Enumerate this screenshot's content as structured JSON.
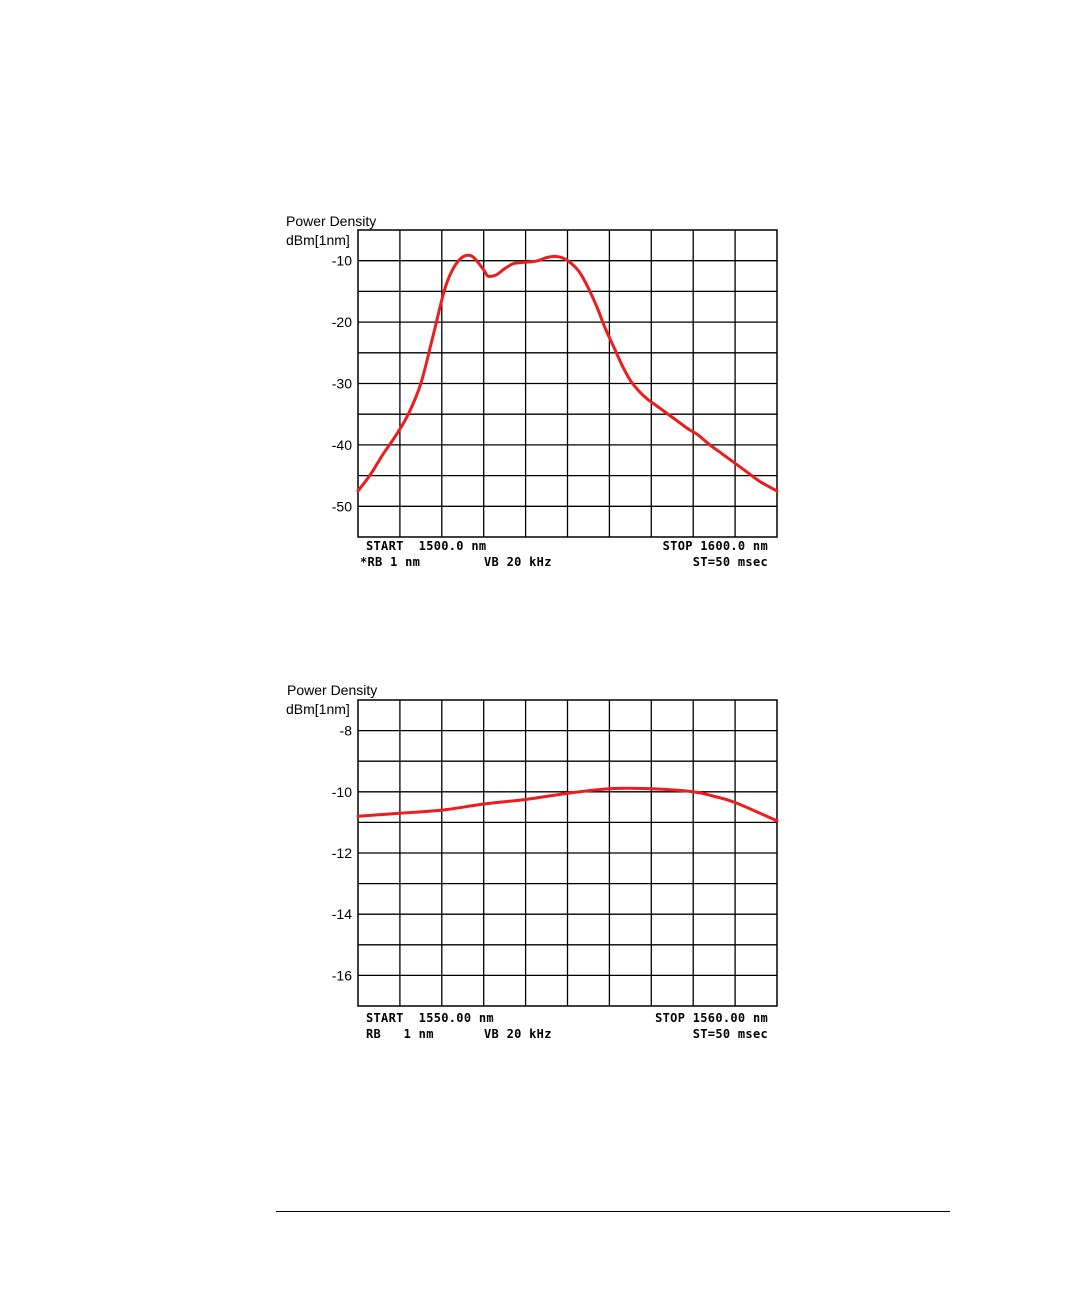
{
  "chart_data": [
    {
      "type": "line",
      "ylabel_line1": "Power Density",
      "ylabel_line2": "dBm[1nm]",
      "xlim": [
        1500,
        1600
      ],
      "ylim": [
        -55,
        -5
      ],
      "ytick_values": [
        -10,
        -20,
        -30,
        -40,
        -50
      ],
      "ytick_labels": [
        "-10",
        "-20",
        "-30",
        "-40",
        "-50"
      ],
      "footer": {
        "start": "START  1500.0 nm",
        "stop": "STOP 1600.0 nm",
        "rb": "*RB 1 nm",
        "vb": "VB 20 kHz",
        "st": "ST=50 msec"
      },
      "line_color": "#ee1c1c",
      "series": [
        {
          "x": [
            1500,
            1503,
            1506,
            1509,
            1512,
            1515,
            1518,
            1521,
            1524,
            1527,
            1530,
            1531,
            1533,
            1535,
            1537,
            1539,
            1541,
            1543,
            1545,
            1547,
            1549,
            1551,
            1553,
            1555,
            1557,
            1559,
            1561,
            1563,
            1565,
            1567,
            1569,
            1571,
            1573,
            1575,
            1577,
            1579,
            1581,
            1584,
            1587,
            1590,
            1593,
            1596,
            1600
          ],
          "y": [
            -47.5,
            -44.8,
            -41.5,
            -38.5,
            -35,
            -30,
            -22,
            -14,
            -10,
            -9.2,
            -11.5,
            -12.5,
            -12.3,
            -11.3,
            -10.5,
            -10.3,
            -10.2,
            -10,
            -9.5,
            -9.3,
            -9.6,
            -10.5,
            -12,
            -14.5,
            -17.5,
            -21,
            -24,
            -27,
            -29.5,
            -31.2,
            -32.5,
            -33.5,
            -34.5,
            -35.5,
            -36.5,
            -37.5,
            -38.3,
            -40,
            -41.5,
            -43,
            -44.5,
            -46,
            -47.5
          ]
        }
      ]
    },
    {
      "type": "line",
      "ylabel_line1": "Power Density",
      "ylabel_line2": "dBm[1nm]",
      "xlim": [
        1550,
        1560
      ],
      "ylim": [
        -17,
        -7
      ],
      "ytick_values": [
        -8,
        -10,
        -12,
        -14,
        -16
      ],
      "ytick_labels": [
        "-8",
        "-10",
        "-12",
        "-14",
        "-16"
      ],
      "footer": {
        "start": "START  1550.00 nm",
        "stop": "STOP 1560.00 nm",
        "rb": "RB   1 nm",
        "vb": "VB 20 kHz",
        "st": "ST=50 msec"
      },
      "line_color": "#ee1c1c",
      "series": [
        {
          "x": [
            1550,
            1551,
            1552,
            1553,
            1554,
            1555,
            1556,
            1557,
            1558,
            1558.5,
            1559,
            1560
          ],
          "y": [
            -10.8,
            -10.7,
            -10.6,
            -10.4,
            -10.25,
            -10.05,
            -9.9,
            -9.9,
            -10,
            -10.15,
            -10.35,
            -10.95
          ]
        }
      ]
    }
  ]
}
